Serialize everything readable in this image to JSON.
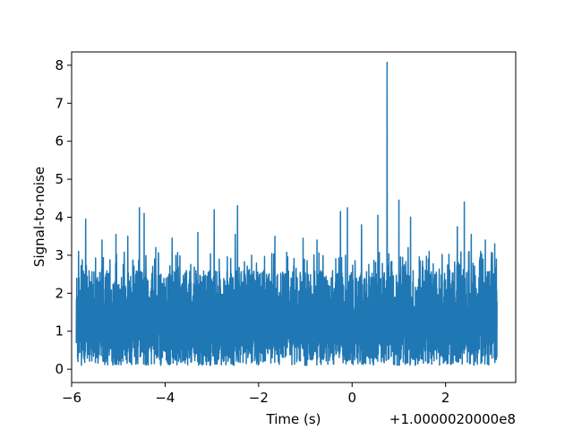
{
  "chart_data": {
    "type": "line",
    "title": "",
    "xlabel": "Time (s)",
    "ylabel": "Signal-to-noise",
    "x_offset_text": "+1.0000020000e8",
    "x_offset": 100000200,
    "xlim": [
      -6.0,
      3.5
    ],
    "ylim": [
      -0.35,
      8.35
    ],
    "xticks": [
      -6,
      -4,
      -2,
      0,
      2
    ],
    "xtick_labels": [
      "−6",
      "−4",
      "−2",
      "0",
      "2"
    ],
    "yticks": [
      0,
      1,
      2,
      3,
      4,
      5,
      6,
      7,
      8
    ],
    "ytick_labels": [
      "0",
      "1",
      "2",
      "3",
      "4",
      "5",
      "6",
      "7",
      "8"
    ],
    "grid": false,
    "legend": "none",
    "series": [
      {
        "color": "#1f77b4",
        "x_range": [
          -5.9,
          3.1
        ],
        "noise_band": [
          0.1,
          2.6
        ],
        "peaks": [
          {
            "x": -5.85,
            "y": 3.1
          },
          {
            "x": -5.7,
            "y": 3.95
          },
          {
            "x": -5.35,
            "y": 3.4
          },
          {
            "x": -5.05,
            "y": 3.55
          },
          {
            "x": -4.8,
            "y": 3.5
          },
          {
            "x": -4.55,
            "y": 4.25
          },
          {
            "x": -4.45,
            "y": 4.1
          },
          {
            "x": -4.2,
            "y": 3.2
          },
          {
            "x": -3.85,
            "y": 3.45
          },
          {
            "x": -3.3,
            "y": 3.6
          },
          {
            "x": -2.95,
            "y": 4.2
          },
          {
            "x": -2.5,
            "y": 3.55
          },
          {
            "x": -2.45,
            "y": 4.3
          },
          {
            "x": -2.15,
            "y": 3.0
          },
          {
            "x": -1.65,
            "y": 3.5
          },
          {
            "x": -1.05,
            "y": 3.45
          },
          {
            "x": -0.75,
            "y": 3.4
          },
          {
            "x": -0.25,
            "y": 4.15
          },
          {
            "x": -0.1,
            "y": 4.25
          },
          {
            "x": 0.2,
            "y": 3.8
          },
          {
            "x": 0.55,
            "y": 4.05
          },
          {
            "x": 0.75,
            "y": 8.08
          },
          {
            "x": 1.0,
            "y": 4.45
          },
          {
            "x": 1.2,
            "y": 3.2
          },
          {
            "x": 1.25,
            "y": 4.0
          },
          {
            "x": 1.65,
            "y": 3.1
          },
          {
            "x": 2.25,
            "y": 3.75
          },
          {
            "x": 2.4,
            "y": 4.4
          },
          {
            "x": 2.55,
            "y": 3.55
          },
          {
            "x": 2.75,
            "y": 3.1
          },
          {
            "x": 2.85,
            "y": 3.4
          },
          {
            "x": 3.05,
            "y": 3.3
          }
        ]
      }
    ]
  }
}
